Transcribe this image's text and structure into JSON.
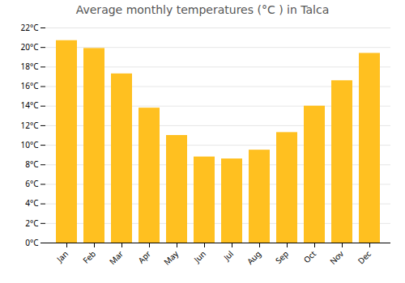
{
  "chart_data": {
    "type": "bar",
    "title": "Average monthly temperatures (°C ) in Talca",
    "categories": [
      "Jan",
      "Feb",
      "Mar",
      "Apr",
      "May",
      "Jun",
      "Jul",
      "Aug",
      "Sep",
      "Oct",
      "Nov",
      "Dec"
    ],
    "values": [
      20.7,
      19.9,
      17.3,
      13.8,
      11.0,
      8.8,
      8.6,
      9.5,
      11.3,
      14.0,
      16.6,
      19.4
    ],
    "color": "#FFC020",
    "ylim": [
      0,
      22
    ],
    "yticks": [
      {
        "value": 0,
        "label": "0°C"
      },
      {
        "value": 2,
        "label": "2°C"
      },
      {
        "value": 4,
        "label": "4°C"
      },
      {
        "value": 6,
        "label": "6°C"
      },
      {
        "value": 8,
        "label": "8°C"
      },
      {
        "value": 10,
        "label": "10°C"
      },
      {
        "value": 12,
        "label": "12°C"
      },
      {
        "value": 14,
        "label": "14°C"
      },
      {
        "value": 16,
        "label": "16°C"
      },
      {
        "value": 18,
        "label": "18°C"
      },
      {
        "value": 20,
        "label": "20°C"
      },
      {
        "value": 22,
        "label": "22°C"
      }
    ],
    "grid": true
  }
}
